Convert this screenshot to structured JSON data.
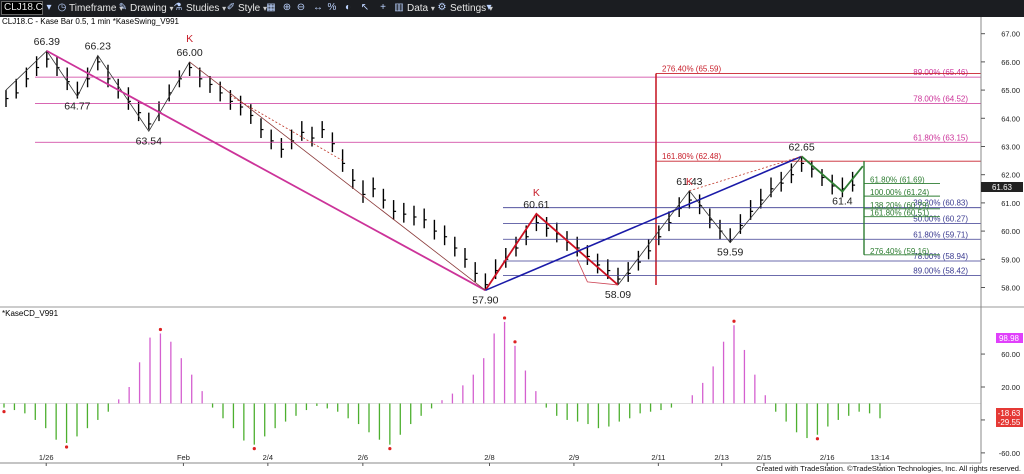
{
  "toolbar": {
    "symbol": "CLJ18.C",
    "timeframe": "Timeframe",
    "drawing": "Drawing",
    "studies": "Studies",
    "style": "Style",
    "data": "Data",
    "settings": "Settings",
    "caret": "▾"
  },
  "price_panel": {
    "title": "CLJ18.C - Kase Bar 0.5, 1 min  *KaseSwing_V991",
    "last_price_badge": "61.63"
  },
  "indicator_panel": {
    "title": "*KaseCD_V991",
    "badges": {
      "top": "98.98",
      "bottom1": "-18.63",
      "bottom2": "-29.55"
    }
  },
  "footer": {
    "credit": "Created with TradeStation. ©TradeStation Technologies, Inc. All rights reserved."
  },
  "colors": {
    "bg": "#ffffff",
    "bar": "#000000",
    "magenta": "#cc3399",
    "fib_right": "#b03060",
    "target_red": "#c8202c",
    "blue_line": "#1a1aa8",
    "navy_fib": "#3a3a90",
    "green_fib": "#2e7d32",
    "hist_green": "#4caf2e",
    "hist_magenta": "#d45fcf",
    "red_dot": "#dd2222",
    "badge_magenta": "#e040fb",
    "badge_red": "#e53935",
    "badge_dark": "#222222"
  },
  "chart_data": [
    {
      "type": "ohlc",
      "title": "CLJ18.C - Kase Bar 0.5, 1 min  *KaseSwing_V991",
      "y_ticks": [
        "67.00",
        "66.00",
        "65.00",
        "64.00",
        "63.00",
        "62.00",
        "61.00",
        "60.00",
        "59.00",
        "58.00"
      ],
      "ylim": [
        57.45,
        67.45
      ],
      "x_ticks": [
        "1/26",
        "Feb",
        "2/4",
        "2/6",
        "2/8",
        "2/9",
        "2/11",
        "2/13",
        "2/15",
        "2/16",
        "13:14"
      ],
      "bars": [
        [
          64.7,
          65.0,
          64.4
        ],
        [
          64.9,
          65.4,
          64.7
        ],
        [
          65.4,
          65.8,
          65.1
        ],
        [
          65.8,
          66.2,
          65.5
        ],
        [
          66.1,
          66.4,
          65.8
        ],
        [
          65.8,
          66.2,
          65.5
        ],
        [
          65.3,
          65.8,
          65.0
        ],
        [
          64.9,
          65.3,
          64.7
        ],
        [
          65.4,
          65.8,
          65.1
        ],
        [
          66.0,
          66.2,
          65.7
        ],
        [
          65.4,
          65.9,
          65.1
        ],
        [
          65.0,
          65.4,
          64.7
        ],
        [
          64.6,
          65.1,
          64.3
        ],
        [
          64.2,
          64.6,
          63.9
        ],
        [
          63.8,
          64.2,
          63.6
        ],
        [
          64.2,
          64.6,
          63.9
        ],
        [
          64.9,
          65.2,
          64.6
        ],
        [
          65.4,
          65.7,
          65.1
        ],
        [
          65.8,
          66.0,
          65.5
        ],
        [
          65.4,
          65.8,
          65.1
        ],
        [
          65.2,
          65.5,
          64.9
        ],
        [
          64.9,
          65.3,
          64.6
        ],
        [
          64.6,
          65.0,
          64.3
        ],
        [
          64.4,
          64.8,
          64.1
        ],
        [
          64.1,
          64.5,
          63.8
        ],
        [
          63.6,
          64.0,
          63.3
        ],
        [
          63.2,
          63.6,
          62.9
        ],
        [
          62.9,
          63.3,
          62.6
        ],
        [
          63.2,
          63.6,
          62.9
        ],
        [
          63.5,
          63.9,
          63.2
        ],
        [
          63.3,
          63.7,
          63.0
        ],
        [
          63.6,
          63.9,
          63.3
        ],
        [
          63.1,
          63.5,
          62.8
        ],
        [
          62.4,
          62.9,
          62.1
        ],
        [
          61.8,
          62.2,
          61.5
        ],
        [
          61.3,
          61.8,
          61.0
        ],
        [
          61.5,
          61.9,
          61.2
        ],
        [
          61.1,
          61.5,
          60.8
        ],
        [
          60.7,
          61.1,
          60.4
        ],
        [
          60.6,
          61.0,
          60.3
        ],
        [
          60.5,
          60.9,
          60.2
        ],
        [
          60.4,
          60.8,
          60.1
        ],
        [
          60.0,
          60.4,
          59.7
        ],
        [
          59.8,
          60.2,
          59.5
        ],
        [
          59.4,
          59.8,
          59.1
        ],
        [
          59.0,
          59.4,
          58.7
        ],
        [
          58.5,
          58.9,
          58.2
        ],
        [
          58.1,
          58.5,
          57.9
        ],
        [
          58.6,
          59.0,
          58.3
        ],
        [
          59.0,
          59.4,
          58.7
        ],
        [
          59.4,
          59.8,
          59.1
        ],
        [
          59.8,
          60.2,
          59.5
        ],
        [
          60.3,
          60.6,
          60.0
        ],
        [
          60.1,
          60.5,
          59.8
        ],
        [
          59.9,
          60.3,
          59.6
        ],
        [
          59.6,
          60.0,
          59.3
        ],
        [
          59.4,
          59.8,
          59.1
        ],
        [
          59.1,
          59.5,
          58.8
        ],
        [
          58.8,
          59.2,
          58.5
        ],
        [
          58.6,
          59.0,
          58.3
        ],
        [
          58.3,
          58.7,
          58.1
        ],
        [
          58.5,
          58.9,
          58.2
        ],
        [
          58.9,
          59.3,
          58.6
        ],
        [
          59.3,
          59.7,
          59.0
        ],
        [
          59.8,
          60.2,
          59.5
        ],
        [
          60.3,
          60.7,
          60.0
        ],
        [
          60.8,
          61.2,
          60.5
        ],
        [
          61.1,
          61.43,
          60.8
        ],
        [
          60.9,
          61.3,
          60.6
        ],
        [
          60.4,
          60.8,
          60.1
        ],
        [
          60.0,
          60.4,
          59.7
        ],
        [
          59.7,
          60.1,
          59.59
        ],
        [
          60.2,
          60.6,
          59.9
        ],
        [
          60.7,
          61.1,
          60.4
        ],
        [
          61.1,
          61.5,
          60.8
        ],
        [
          61.5,
          61.9,
          61.2
        ],
        [
          61.7,
          62.1,
          61.4
        ],
        [
          62.0,
          62.4,
          61.7
        ],
        [
          62.4,
          62.65,
          62.1
        ],
        [
          62.2,
          62.5,
          61.9
        ],
        [
          61.9,
          62.2,
          61.6
        ],
        [
          61.6,
          62.0,
          61.3
        ],
        [
          61.5,
          61.9,
          61.2
        ],
        [
          61.63,
          62.1,
          61.4
        ]
      ],
      "swing_labels": [
        {
          "text": "66.39",
          "price": 66.39
        },
        {
          "text": "66.23",
          "price": 66.23
        },
        {
          "text": "K",
          "price": 66.8
        },
        {
          "text": "66.00",
          "price": 66.0
        },
        {
          "text": "64.77",
          "price": 64.77
        },
        {
          "text": "63.54",
          "price": 63.54
        },
        {
          "text": "K",
          "price": 61.3
        },
        {
          "text": "60.61",
          "price": 60.61
        },
        {
          "text": "57.90",
          "price": 57.9
        },
        {
          "text": "58.09",
          "price": 58.09
        },
        {
          "text": "61.43",
          "price": 61.43
        },
        {
          "text": "K",
          "price": 61.43
        },
        {
          "text": "59.59",
          "price": 59.59
        },
        {
          "text": "62.65",
          "price": 62.65
        },
        {
          "text": "61.4",
          "price": 61.4
        }
      ],
      "left_fib_levels": [
        {
          "label": "89.00% (65.46)",
          "price": 65.46
        },
        {
          "label": "78.00% (64.52)",
          "price": 64.52
        },
        {
          "label": "61.80% (63.15)",
          "price": 63.15
        }
      ],
      "target_levels": [
        {
          "label": "276.40% (65.59)",
          "price": 65.59
        },
        {
          "label": "161.80% (62.48)",
          "price": 62.48
        }
      ],
      "mid_fib_levels": [
        {
          "label": "38.20% (60.83)",
          "price": 60.83
        },
        {
          "label": "50.00% (60.27)",
          "price": 60.27
        },
        {
          "label": "61.80% (59.71)",
          "price": 59.71
        },
        {
          "label": "78.00% (58.94)",
          "price": 58.94
        },
        {
          "label": "89.00% (58.42)",
          "price": 58.42
        }
      ],
      "green_levels": [
        {
          "label": "61.80% (61.69)",
          "price": 61.69
        },
        {
          "label": "100.00% (61.24)",
          "price": 61.24
        },
        {
          "label": "138.20% (60.79)",
          "price": 60.79
        },
        {
          "label": "161.80% (60.51)",
          "price": 60.51
        },
        {
          "label": "276.40% (59.16)",
          "price": 59.16
        }
      ]
    },
    {
      "type": "histogram",
      "title": "*KaseCD_V991",
      "y_ticks": [
        "60.00",
        "20.00",
        "-20.00",
        "-60.00"
      ],
      "ylim": [
        -65,
        105
      ],
      "bar_values": [
        -5,
        -8,
        -12,
        -20,
        -30,
        -44,
        -48,
        -40,
        -30,
        -20,
        -10,
        5,
        20,
        50,
        80,
        85,
        75,
        55,
        35,
        15,
        -5,
        -18,
        -30,
        -45,
        -50,
        -40,
        -30,
        -22,
        -15,
        -8,
        -3,
        -6,
        -10,
        -18,
        -25,
        -35,
        -44,
        -50,
        -38,
        -25,
        -15,
        -6,
        4,
        12,
        22,
        35,
        55,
        85,
        99,
        70,
        40,
        15,
        -5,
        -15,
        -20,
        -22,
        -25,
        -30,
        -28,
        -22,
        -18,
        -12,
        -10,
        -8,
        -5,
        0,
        10,
        25,
        45,
        75,
        95,
        65,
        35,
        10,
        -10,
        -22,
        -35,
        -42,
        -38,
        -28,
        -20,
        -15,
        -10,
        -12,
        -18
      ],
      "legend": []
    }
  ]
}
